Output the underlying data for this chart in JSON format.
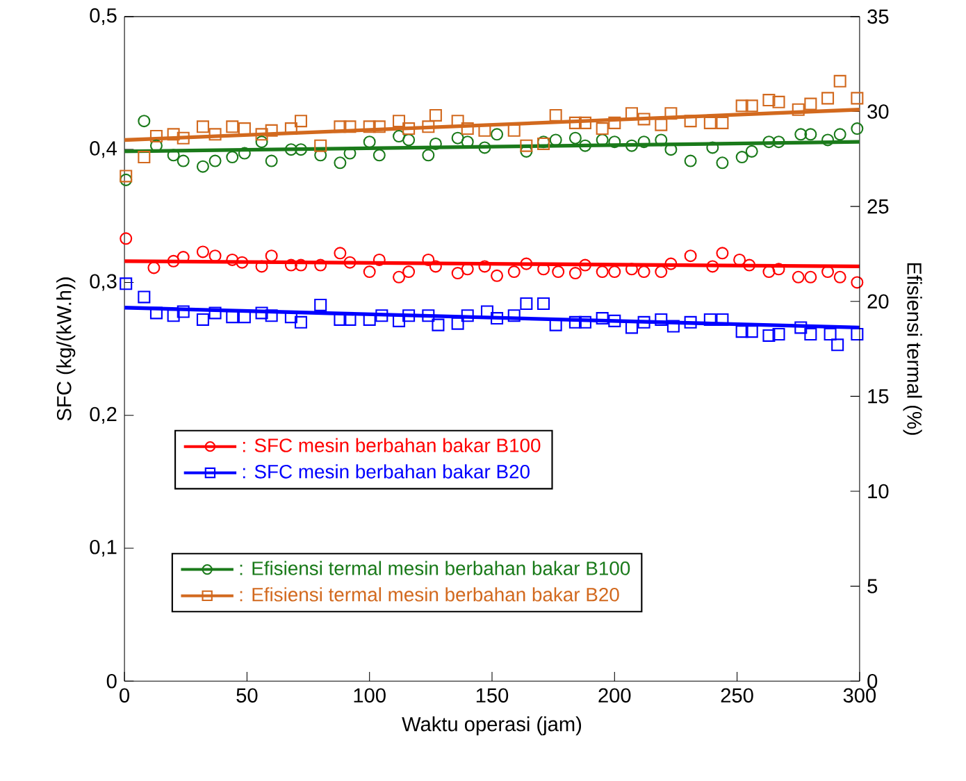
{
  "chart_data": {
    "type": "scatter",
    "xlabel": "Waktu operasi (jam)",
    "ylabel": "SFC (kg/(kW.h))",
    "y2label": "Efisiensi termal (%)",
    "xlim": [
      0,
      300
    ],
    "xticks": [
      0,
      50,
      100,
      150,
      200,
      250,
      300
    ],
    "ylim": [
      0,
      0.5
    ],
    "yticks": [
      0,
      {
        "value": 0.1,
        "label": "0,1"
      },
      {
        "value": 0.2,
        "label": "0,2"
      },
      {
        "value": 0.3,
        "label": "0,3"
      },
      {
        "value": 0.4,
        "label": "0,4"
      },
      {
        "value": 0.5,
        "label": "0,5"
      }
    ],
    "y2lim": [
      0,
      35
    ],
    "y2ticks": [
      0,
      5,
      10,
      15,
      20,
      25,
      30,
      35
    ],
    "legend": "bottom left",
    "series": [
      {
        "name": ": SFC mesin berbahan bakar B100",
        "color": "#ff0000",
        "marker": "circle",
        "x": [
          0.6,
          12,
          20,
          24,
          32,
          37,
          44,
          48,
          56,
          60,
          68,
          72,
          80,
          88,
          92,
          100,
          104,
          112,
          116,
          124,
          127,
          136,
          140,
          147,
          152,
          159,
          164,
          171,
          177,
          184,
          188,
          195,
          200,
          207,
          212,
          219,
          223,
          231,
          240,
          244,
          251,
          255,
          263,
          267,
          275,
          280,
          287,
          292,
          299
        ],
        "values": [
          0.333,
          0.311,
          0.316,
          0.319,
          0.323,
          0.32,
          0.317,
          0.315,
          0.312,
          0.32,
          0.313,
          0.313,
          0.313,
          0.322,
          0.315,
          0.308,
          0.317,
          0.304,
          0.308,
          0.317,
          0.312,
          0.307,
          0.31,
          0.312,
          0.305,
          0.308,
          0.314,
          0.31,
          0.308,
          0.307,
          0.313,
          0.308,
          0.308,
          0.31,
          0.308,
          0.308,
          0.314,
          0.32,
          0.312,
          0.322,
          0.317,
          0.313,
          0.308,
          0.31,
          0.304,
          0.304,
          0.308,
          0.304,
          0.3
        ]
      },
      {
        "name": ":  SFC mesin berbahan bakar B20",
        "color": "#0000ff",
        "marker": "square",
        "x": [
          0.6,
          8,
          13,
          20,
          24,
          32,
          37,
          44,
          49,
          56,
          60,
          68,
          72,
          80,
          88,
          92,
          100,
          105,
          112,
          116,
          124,
          128,
          136,
          140,
          148,
          152,
          159,
          164,
          171,
          176,
          184,
          188,
          195,
          200,
          207,
          212,
          219,
          224,
          231,
          239,
          244,
          252,
          256,
          263,
          267,
          276,
          280,
          288,
          291,
          299
        ],
        "values": [
          0.299,
          0.289,
          0.277,
          0.275,
          0.278,
          0.272,
          0.277,
          0.274,
          0.274,
          0.277,
          0.275,
          0.274,
          0.27,
          0.283,
          0.272,
          0.272,
          0.272,
          0.275,
          0.271,
          0.275,
          0.275,
          0.268,
          0.269,
          0.275,
          0.278,
          0.273,
          0.275,
          0.284,
          0.284,
          0.268,
          0.27,
          0.27,
          0.273,
          0.271,
          0.266,
          0.27,
          0.272,
          0.267,
          0.27,
          0.272,
          0.272,
          0.263,
          0.263,
          0.26,
          0.261,
          0.266,
          0.261,
          0.261,
          0.253,
          0.261
        ]
      },
      {
        "name": ":  Efisiensi termal mesin berbahan bakar B100",
        "color": "#1a7a1a",
        "marker": "circle",
        "axis": "y2",
        "x": [
          0.6,
          8,
          13,
          20,
          24,
          32,
          37,
          44,
          49,
          56,
          60,
          68,
          72,
          80,
          88,
          92,
          100,
          104,
          112,
          116,
          124,
          127,
          136,
          140,
          147,
          152,
          164,
          171,
          176,
          184,
          188,
          195,
          200,
          207,
          212,
          219,
          223,
          231,
          240,
          244,
          252,
          256,
          263,
          267,
          276,
          280,
          287,
          292,
          299
        ],
        "values": [
          26.4,
          29.5,
          28.2,
          27.7,
          27.4,
          27.1,
          27.4,
          27.6,
          27.8,
          28.4,
          27.4,
          28.0,
          28.0,
          27.7,
          27.3,
          27.8,
          28.4,
          27.7,
          28.7,
          28.5,
          27.7,
          28.3,
          28.6,
          28.4,
          28.1,
          28.8,
          27.9,
          28.4,
          28.5,
          28.6,
          28.2,
          28.5,
          28.4,
          28.2,
          28.4,
          28.5,
          28.0,
          27.4,
          28.1,
          27.3,
          27.6,
          27.9,
          28.4,
          28.4,
          28.8,
          28.8,
          28.5,
          28.8,
          29.1
        ]
      },
      {
        "name": ":  Efisiensi termal mesin berbahan bakar B20",
        "color": "#d2691e",
        "marker": "square",
        "axis": "y2",
        "x": [
          0.6,
          8,
          13,
          20,
          24,
          32,
          37,
          44,
          49,
          56,
          60,
          68,
          72,
          80,
          88,
          92,
          100,
          104,
          112,
          116,
          124,
          127,
          136,
          140,
          147,
          159,
          164,
          171,
          176,
          184,
          188,
          195,
          200,
          207,
          212,
          219,
          223,
          231,
          239,
          244,
          252,
          256,
          263,
          267,
          275,
          280,
          287,
          292,
          299
        ],
        "values": [
          26.6,
          27.6,
          28.7,
          28.8,
          28.6,
          29.2,
          28.8,
          29.2,
          29.1,
          28.8,
          29.0,
          29.1,
          29.5,
          28.2,
          29.2,
          29.2,
          29.2,
          29.2,
          29.5,
          29.1,
          29.2,
          29.8,
          29.5,
          29.1,
          29.0,
          29.0,
          28.2,
          28.3,
          29.8,
          29.4,
          29.4,
          29.1,
          29.4,
          29.9,
          29.6,
          29.3,
          29.9,
          29.5,
          29.4,
          29.4,
          30.3,
          30.3,
          30.6,
          30.5,
          30.1,
          30.4,
          30.7,
          31.6,
          30.7
        ]
      },
      {
        "type": "line",
        "color": "#ff0000",
        "marker": "none",
        "x": [
          0,
          300
        ],
        "values": [
          0.316,
          0.312
        ]
      },
      {
        "type": "line",
        "color": "#0000ff",
        "marker": "none",
        "x": [
          0,
          300
        ],
        "values": [
          0.281,
          0.266
        ]
      },
      {
        "type": "line",
        "color": "#1a7a1a",
        "marker": "none",
        "axis": "y2",
        "x": [
          0,
          300
        ],
        "values": [
          27.9,
          28.4
        ]
      },
      {
        "type": "line",
        "color": "#d2691e",
        "marker": "none",
        "axis": "y2",
        "x": [
          0,
          300
        ],
        "values": [
          28.5,
          30.1
        ]
      }
    ]
  }
}
